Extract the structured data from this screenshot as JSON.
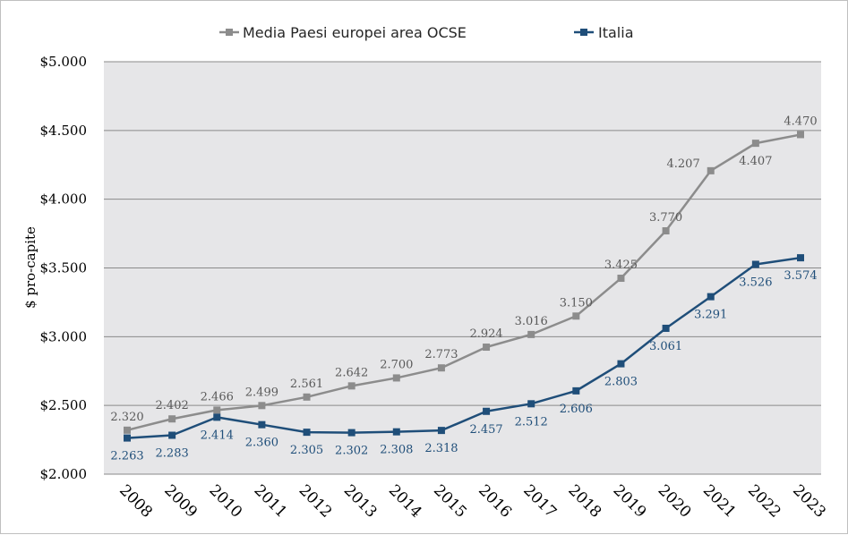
{
  "chart_data": {
    "type": "line",
    "title": "",
    "xlabel": "",
    "ylabel": "$ pro-capite",
    "ylim": [
      2000,
      5000
    ],
    "y_ticks": [
      2000,
      2500,
      3000,
      3500,
      4000,
      4500,
      5000
    ],
    "y_tick_labels": [
      "$2.000",
      "$2.500",
      "$3.000",
      "$3.500",
      "$4.000",
      "$4.500",
      "$5.000"
    ],
    "categories": [
      "2008",
      "2009",
      "2010",
      "2011",
      "2012",
      "2013",
      "2014",
      "2015",
      "2016",
      "2017",
      "2018",
      "2019",
      "2020",
      "2021",
      "2022",
      "2023"
    ],
    "grid": true,
    "legend_position": "top",
    "series": [
      {
        "name": "Media Paesi europei area OCSE",
        "color": "#8c8c8c",
        "values": [
          2320,
          2402,
          2466,
          2499,
          2561,
          2642,
          2700,
          2773,
          2924,
          3016,
          3150,
          3425,
          3770,
          4207,
          4407,
          4470
        ],
        "labels": [
          "2.320",
          "2.402",
          "2.466",
          "2.499",
          "2.561",
          "2.642",
          "2.700",
          "2.773",
          "2.924",
          "3.016",
          "3.150",
          "3.425",
          "3.770",
          "4.207",
          "4.407",
          "4.470"
        ],
        "label_side": [
          "above",
          "above",
          "above",
          "above",
          "above",
          "above",
          "above",
          "above",
          "above",
          "above",
          "above",
          "above",
          "above",
          "left",
          "below",
          "above"
        ]
      },
      {
        "name": "Italia",
        "color": "#1f4e79",
        "values": [
          2263,
          2283,
          2414,
          2360,
          2305,
          2302,
          2308,
          2318,
          2457,
          2512,
          2606,
          2803,
          3061,
          3291,
          3526,
          3574
        ],
        "labels": [
          "2.263",
          "2.283",
          "2.414",
          "2.360",
          "2.305",
          "2.302",
          "2.308",
          "2.318",
          "2.457",
          "2.512",
          "2.606",
          "2.803",
          "3.061",
          "3.291",
          "3.526",
          "3.574"
        ],
        "label_side": [
          "below",
          "below",
          "below",
          "below",
          "below",
          "below",
          "below",
          "below",
          "below",
          "below",
          "below",
          "below",
          "below",
          "below",
          "below",
          "below"
        ]
      }
    ]
  }
}
